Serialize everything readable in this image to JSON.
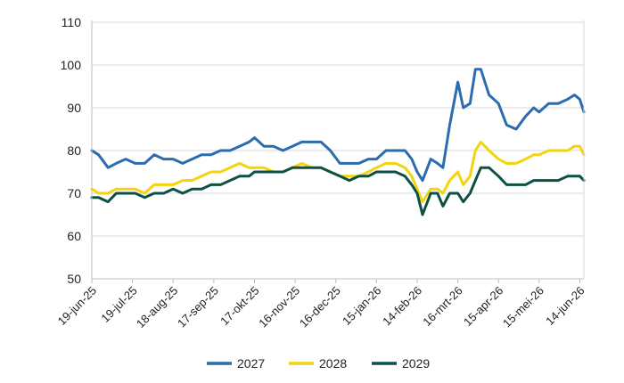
{
  "chart_data": {
    "type": "line",
    "title": "",
    "xlabel": "",
    "ylabel": "",
    "ylim": [
      50,
      110
    ],
    "yticks": [
      50,
      60,
      70,
      80,
      90,
      100,
      110
    ],
    "grid": "horizontal",
    "legend_position": "bottom",
    "xticks": [
      {
        "label": "19-jun-25",
        "date": "2025-06-19"
      },
      {
        "label": "19-jul-25",
        "date": "2025-07-19"
      },
      {
        "label": "18-aug-25",
        "date": "2025-08-18"
      },
      {
        "label": "17-sep-25",
        "date": "2025-09-17"
      },
      {
        "label": "17-okt-25",
        "date": "2025-10-17"
      },
      {
        "label": "16-nov-25",
        "date": "2025-11-16"
      },
      {
        "label": "16-dec-25",
        "date": "2025-12-16"
      },
      {
        "label": "15-jan-26",
        "date": "2026-01-15"
      },
      {
        "label": "14-feb-26",
        "date": "2026-02-14"
      },
      {
        "label": "16-mrt-26",
        "date": "2026-03-16"
      },
      {
        "label": "15-apr-26",
        "date": "2026-04-15"
      },
      {
        "label": "15-mei-26",
        "date": "2026-05-15"
      },
      {
        "label": "14-jun-26",
        "date": "2026-06-14"
      }
    ],
    "x": [
      "2025-06-19",
      "2025-06-24",
      "2025-07-01",
      "2025-07-07",
      "2025-07-14",
      "2025-07-21",
      "2025-07-28",
      "2025-08-04",
      "2025-08-11",
      "2025-08-18",
      "2025-08-25",
      "2025-09-01",
      "2025-09-08",
      "2025-09-15",
      "2025-09-22",
      "2025-09-29",
      "2025-10-06",
      "2025-10-13",
      "2025-10-17",
      "2025-10-24",
      "2025-10-31",
      "2025-11-07",
      "2025-11-14",
      "2025-11-21",
      "2025-11-28",
      "2025-12-05",
      "2025-12-12",
      "2025-12-19",
      "2025-12-26",
      "2026-01-02",
      "2026-01-09",
      "2026-01-15",
      "2026-01-22",
      "2026-01-29",
      "2026-02-05",
      "2026-02-10",
      "2026-02-14",
      "2026-02-18",
      "2026-02-24",
      "2026-03-01",
      "2026-03-05",
      "2026-03-10",
      "2026-03-16",
      "2026-03-20",
      "2026-03-25",
      "2026-03-29",
      "2026-04-02",
      "2026-04-08",
      "2026-04-15",
      "2026-04-21",
      "2026-04-28",
      "2026-05-05",
      "2026-05-11",
      "2026-05-15",
      "2026-05-22",
      "2026-05-29",
      "2026-06-05",
      "2026-06-10",
      "2026-06-14",
      "2026-06-17"
    ],
    "series": [
      {
        "name": "2027",
        "color": "#2b6cb0",
        "values": [
          80,
          79,
          76,
          77,
          78,
          77,
          77,
          79,
          78,
          78,
          77,
          78,
          79,
          79,
          80,
          80,
          81,
          82,
          83,
          81,
          81,
          80,
          81,
          82,
          82,
          82,
          80,
          77,
          77,
          77,
          78,
          78,
          80,
          80,
          80,
          78,
          75,
          73,
          78,
          77,
          76,
          86,
          96,
          90,
          91,
          99,
          99,
          93,
          91,
          86,
          85,
          88,
          90,
          89,
          91,
          91,
          92,
          93,
          92,
          89
        ]
      },
      {
        "name": "2028",
        "color": "#f2d40f",
        "values": [
          71,
          70,
          70,
          71,
          71,
          71,
          70,
          72,
          72,
          72,
          73,
          73,
          74,
          75,
          75,
          76,
          77,
          76,
          76,
          76,
          75,
          75,
          76,
          77,
          76,
          76,
          75,
          74,
          74,
          74,
          75,
          76,
          77,
          77,
          76,
          74,
          71,
          68,
          71,
          71,
          70,
          73,
          75,
          72,
          74,
          80,
          82,
          80,
          78,
          77,
          77,
          78,
          79,
          79,
          80,
          80,
          80,
          81,
          81,
          79
        ]
      },
      {
        "name": "2029",
        "color": "#0d5046",
        "values": [
          69,
          69,
          68,
          70,
          70,
          70,
          69,
          70,
          70,
          71,
          70,
          71,
          71,
          72,
          72,
          73,
          74,
          74,
          75,
          75,
          75,
          75,
          76,
          76,
          76,
          76,
          75,
          74,
          73,
          74,
          74,
          75,
          75,
          75,
          74,
          72,
          70,
          65,
          70,
          70,
          67,
          70,
          70,
          68,
          70,
          73,
          76,
          76,
          74,
          72,
          72,
          72,
          73,
          73,
          73,
          73,
          74,
          74,
          74,
          73
        ]
      }
    ]
  }
}
